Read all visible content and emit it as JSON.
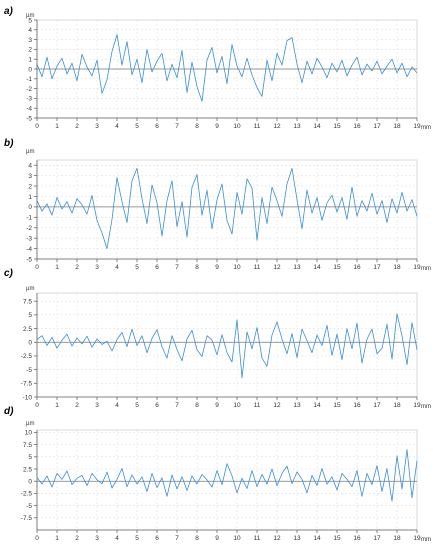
{
  "colors": {
    "trace": "#3a8fd6",
    "grid": "#d9d9d9",
    "axis": "#666666",
    "text": "#333333"
  },
  "chart_data": [
    {
      "type": "line",
      "panel_label": "a)",
      "ylabel": "µm",
      "xlabel": "mm",
      "x_ticks": [
        "0",
        "1",
        "2",
        "3",
        "4",
        "5",
        "6",
        "7",
        "8",
        "9",
        "10",
        "11",
        "12",
        "13",
        "14",
        "15",
        "16",
        "17",
        "18",
        "19"
      ],
      "y_ticks": [
        "5",
        "4",
        "3",
        "2",
        "1",
        "0",
        "-1",
        "-2",
        "-3",
        "-4",
        "-5"
      ],
      "xlim": [
        0,
        19
      ],
      "ylim": [
        -5,
        5
      ],
      "grid": true,
      "series": [
        {
          "x": [
            0,
            0.25,
            0.5,
            0.75,
            1,
            1.25,
            1.5,
            1.75,
            2,
            2.25,
            2.5,
            2.75,
            3,
            3.25,
            3.5,
            3.75,
            4,
            4.25,
            4.5,
            4.75,
            5,
            5.25,
            5.5,
            5.75,
            6,
            6.25,
            6.5,
            6.75,
            7,
            7.25,
            7.5,
            7.75,
            8,
            8.25,
            8.5,
            8.75,
            9,
            9.25,
            9.5,
            9.75,
            10,
            10.25,
            10.5,
            10.75,
            11,
            11.25,
            11.5,
            11.75,
            12,
            12.25,
            12.5,
            12.75,
            13,
            13.25,
            13.5,
            13.75,
            14,
            14.25,
            14.5,
            14.75,
            15,
            15.25,
            15.5,
            15.75,
            16,
            16.25,
            16.5,
            16.75,
            17,
            17.25,
            17.5,
            17.75,
            18,
            18.25,
            18.5,
            18.75,
            19
          ],
          "values": [
            0.5,
            -0.8,
            1.2,
            -1,
            0.3,
            1.1,
            -0.5,
            0.6,
            -1.2,
            1.5,
            0.2,
            -0.7,
            0.9,
            -2.5,
            -1.1,
            1.8,
            3.5,
            0.4,
            2.8,
            -0.6,
            1,
            -1.4,
            2,
            -0.3,
            0.8,
            1.6,
            -1.2,
            0.5,
            -0.9,
            1.9,
            -2.4,
            0.7,
            -1.8,
            -3.3,
            0.9,
            2.2,
            -0.4,
            1.3,
            -1.5,
            2.5,
            0.3,
            -0.8,
            1.1,
            -0.6,
            -1.9,
            -2.8,
            0.9,
            -1.2,
            1.6,
            0.4,
            2.9,
            3.2,
            0.5,
            -1.4,
            0.8,
            -0.5,
            1.1,
            0.2,
            -0.9,
            0.6,
            -0.3,
            0.9,
            -0.7,
            0.4,
            1.2,
            -0.6,
            0.5,
            -0.2,
            0.8,
            -0.5,
            0.3,
            1,
            -0.4,
            0.6,
            -0.8,
            0.2,
            -0.4
          ]
        }
      ]
    },
    {
      "type": "line",
      "panel_label": "b)",
      "ylabel": "µm",
      "xlabel": "mm",
      "x_ticks": [
        "0",
        "1",
        "2",
        "3",
        "4",
        "5",
        "6",
        "7",
        "8",
        "9",
        "10",
        "11",
        "12",
        "13",
        "14",
        "15",
        "16",
        "17",
        "18",
        "19"
      ],
      "y_ticks": [
        "4",
        "3",
        "2",
        "1",
        "0",
        "-1",
        "-2",
        "-3",
        "-4",
        "-5"
      ],
      "xlim": [
        0,
        19
      ],
      "ylim": [
        -5,
        4.5
      ],
      "grid": true,
      "series": [
        {
          "x": [
            0,
            0.25,
            0.5,
            0.75,
            1,
            1.25,
            1.5,
            1.75,
            2,
            2.25,
            2.5,
            2.75,
            3,
            3.25,
            3.5,
            3.75,
            4,
            4.25,
            4.5,
            4.75,
            5,
            5.25,
            5.5,
            5.75,
            6,
            6.25,
            6.5,
            6.75,
            7,
            7.25,
            7.5,
            7.75,
            8,
            8.25,
            8.5,
            8.75,
            9,
            9.25,
            9.5,
            9.75,
            10,
            10.25,
            10.5,
            10.75,
            11,
            11.25,
            11.5,
            11.75,
            12,
            12.25,
            12.5,
            12.75,
            13,
            13.25,
            13.5,
            13.75,
            14,
            14.25,
            14.5,
            14.75,
            15,
            15.25,
            15.5,
            15.75,
            16,
            16.25,
            16.5,
            16.75,
            17,
            17.25,
            17.5,
            17.75,
            18,
            18.25,
            18.5,
            18.75,
            19
          ],
          "values": [
            0.6,
            -0.4,
            0.3,
            -0.8,
            0.9,
            -0.2,
            0.5,
            -0.6,
            0.8,
            0.2,
            -0.7,
            1.1,
            -1.3,
            -2.5,
            -4,
            -1.2,
            2.8,
            0.5,
            -1.5,
            2.5,
            3.7,
            0.8,
            -1.6,
            2.1,
            0.4,
            -2.8,
            0.6,
            2.5,
            -1.9,
            0.5,
            -2.9,
            1.9,
            3.1,
            -0.8,
            1.6,
            -2.1,
            0.7,
            2.2,
            -1.3,
            -2.6,
            1.4,
            -0.7,
            2.7,
            1.8,
            -3.2,
            0.9,
            -1.6,
            1.9,
            0.6,
            -0.9,
            2.2,
            3.7,
            0.7,
            -2.1,
            1.6,
            -0.6,
            0.9,
            -1.3,
            0.4,
            1.1,
            -0.5,
            0.9,
            -1.2,
            1.9,
            -0.9,
            0.6,
            -0.4,
            1.3,
            -0.7,
            0.6,
            -1.5,
            0.8,
            -0.6,
            1.4,
            -0.4,
            0.7,
            -0.9
          ]
        }
      ]
    },
    {
      "type": "line",
      "panel_label": "c)",
      "ylabel": "µm",
      "xlabel": "mm",
      "x_ticks": [
        "0",
        "1",
        "2",
        "3",
        "4",
        "5",
        "6",
        "7",
        "8",
        "9",
        "10",
        "11",
        "12",
        "13",
        "14",
        "15",
        "16",
        "17",
        "18",
        "19"
      ],
      "y_ticks": [
        "7.5",
        "5",
        "2.5",
        "0",
        "-2.5",
        "-5",
        "-7.5",
        "-10"
      ],
      "xlim": [
        0,
        19
      ],
      "ylim": [
        -10,
        9
      ],
      "grid": true,
      "series": [
        {
          "x": [
            0,
            0.25,
            0.5,
            0.75,
            1,
            1.25,
            1.5,
            1.75,
            2,
            2.25,
            2.5,
            2.75,
            3,
            3.25,
            3.5,
            3.75,
            4,
            4.25,
            4.5,
            4.75,
            5,
            5.25,
            5.5,
            5.75,
            6,
            6.25,
            6.5,
            6.75,
            7,
            7.25,
            7.5,
            7.75,
            8,
            8.25,
            8.5,
            8.75,
            9,
            9.25,
            9.5,
            9.75,
            10,
            10.25,
            10.5,
            10.75,
            11,
            11.25,
            11.5,
            11.75,
            12,
            12.25,
            12.5,
            12.75,
            13,
            13.25,
            13.5,
            13.75,
            14,
            14.25,
            14.5,
            14.75,
            15,
            15.25,
            15.5,
            15.75,
            16,
            16.25,
            16.5,
            16.75,
            17,
            17.25,
            17.5,
            17.75,
            18,
            18.25,
            18.5,
            18.75,
            19
          ],
          "values": [
            0.5,
            1.2,
            -0.6,
            0.9,
            -1.1,
            0.4,
            1.5,
            -0.7,
            0.8,
            -0.3,
            1.1,
            -0.9,
            0.6,
            -0.4,
            0.2,
            -1.6,
            0.5,
            1.8,
            -0.8,
            2.4,
            -0.6,
            1.2,
            -1.9,
            0.7,
            2.3,
            -0.8,
            -2.9,
            1.2,
            -1.3,
            -3.4,
            0.6,
            2.2,
            -1.4,
            -2.6,
            1.2,
            0.4,
            -2.3,
            1.4,
            -1.9,
            -3.6,
            4.1,
            -6.5,
            1.9,
            -1.2,
            2.7,
            -2.9,
            -4.4,
            1.3,
            3.7,
            0.6,
            -2.1,
            1.6,
            -2.8,
            2.4,
            0.3,
            -1.9,
            1.3,
            -0.6,
            3.1,
            -2.4,
            1.5,
            -3.2,
            2.5,
            -1.2,
            3.5,
            -3.8,
            0.6,
            2.4,
            -2.1,
            -1.1,
            3.3,
            -3.1,
            5.2,
            1.2,
            -4.1,
            3.6,
            -1.4
          ]
        }
      ]
    },
    {
      "type": "line",
      "panel_label": "d)",
      "ylabel": "µm",
      "xlabel": "mm",
      "x_ticks": [
        "0",
        "1",
        "2",
        "3",
        "4",
        "5",
        "6",
        "7",
        "8",
        "9",
        "10",
        "11",
        "12",
        "13",
        "14",
        "15",
        "16",
        "17",
        "18",
        "19"
      ],
      "y_ticks": [
        "10",
        "7.5",
        "5",
        "2.5",
        "0",
        "-2.5",
        "-5",
        "-7.5"
      ],
      "xlim": [
        0,
        19
      ],
      "ylim": [
        -10,
        10.5
      ],
      "grid": true,
      "series": [
        {
          "x": [
            0,
            0.25,
            0.5,
            0.75,
            1,
            1.25,
            1.5,
            1.75,
            2,
            2.25,
            2.5,
            2.75,
            3,
            3.25,
            3.5,
            3.75,
            4,
            4.25,
            4.5,
            4.75,
            5,
            5.25,
            5.5,
            5.75,
            6,
            6.25,
            6.5,
            6.75,
            7,
            7.25,
            7.5,
            7.75,
            8,
            8.25,
            8.5,
            8.75,
            9,
            9.25,
            9.5,
            9.75,
            10,
            10.25,
            10.5,
            10.75,
            11,
            11.25,
            11.5,
            11.75,
            12,
            12.25,
            12.5,
            12.75,
            13,
            13.25,
            13.5,
            13.75,
            14,
            14.25,
            14.5,
            14.75,
            15,
            15.25,
            15.5,
            15.75,
            16,
            16.25,
            16.5,
            16.75,
            17,
            17.25,
            17.5,
            17.75,
            18,
            18.25,
            18.5,
            18.75,
            19
          ],
          "values": [
            0.8,
            -0.6,
            1.1,
            -1.2,
            1.6,
            0.4,
            2.1,
            -0.7,
            0.6,
            1.2,
            -0.9,
            1.6,
            0.3,
            -0.5,
            1.9,
            -1.4,
            0.4,
            2.6,
            -1.1,
            1.3,
            -0.6,
            0.9,
            -2.1,
            1.6,
            -1.3,
            0.7,
            -3.1,
            1.3,
            -1.6,
            0.9,
            -1.9,
            1.1,
            -0.6,
            1.4,
            0.3,
            -1.2,
            2.2,
            -0.7,
            3.6,
            1.1,
            -2.4,
            0.6,
            -1.5,
            2.2,
            -1.1,
            1.4,
            -0.6,
            2.5,
            -0.9,
            1.6,
            3.1,
            -0.5,
            1.9,
            0.4,
            -2.4,
            1.2,
            -0.9,
            2.6,
            -0.6,
            0.9,
            -1.8,
            1.6,
            0.4,
            -1.1,
            2.2,
            -3.1,
            1.6,
            -0.7,
            3.2,
            -2.1,
            2.6,
            -4.1,
            5.2,
            -1.6,
            6.5,
            -3.4,
            4.2
          ]
        }
      ]
    }
  ]
}
